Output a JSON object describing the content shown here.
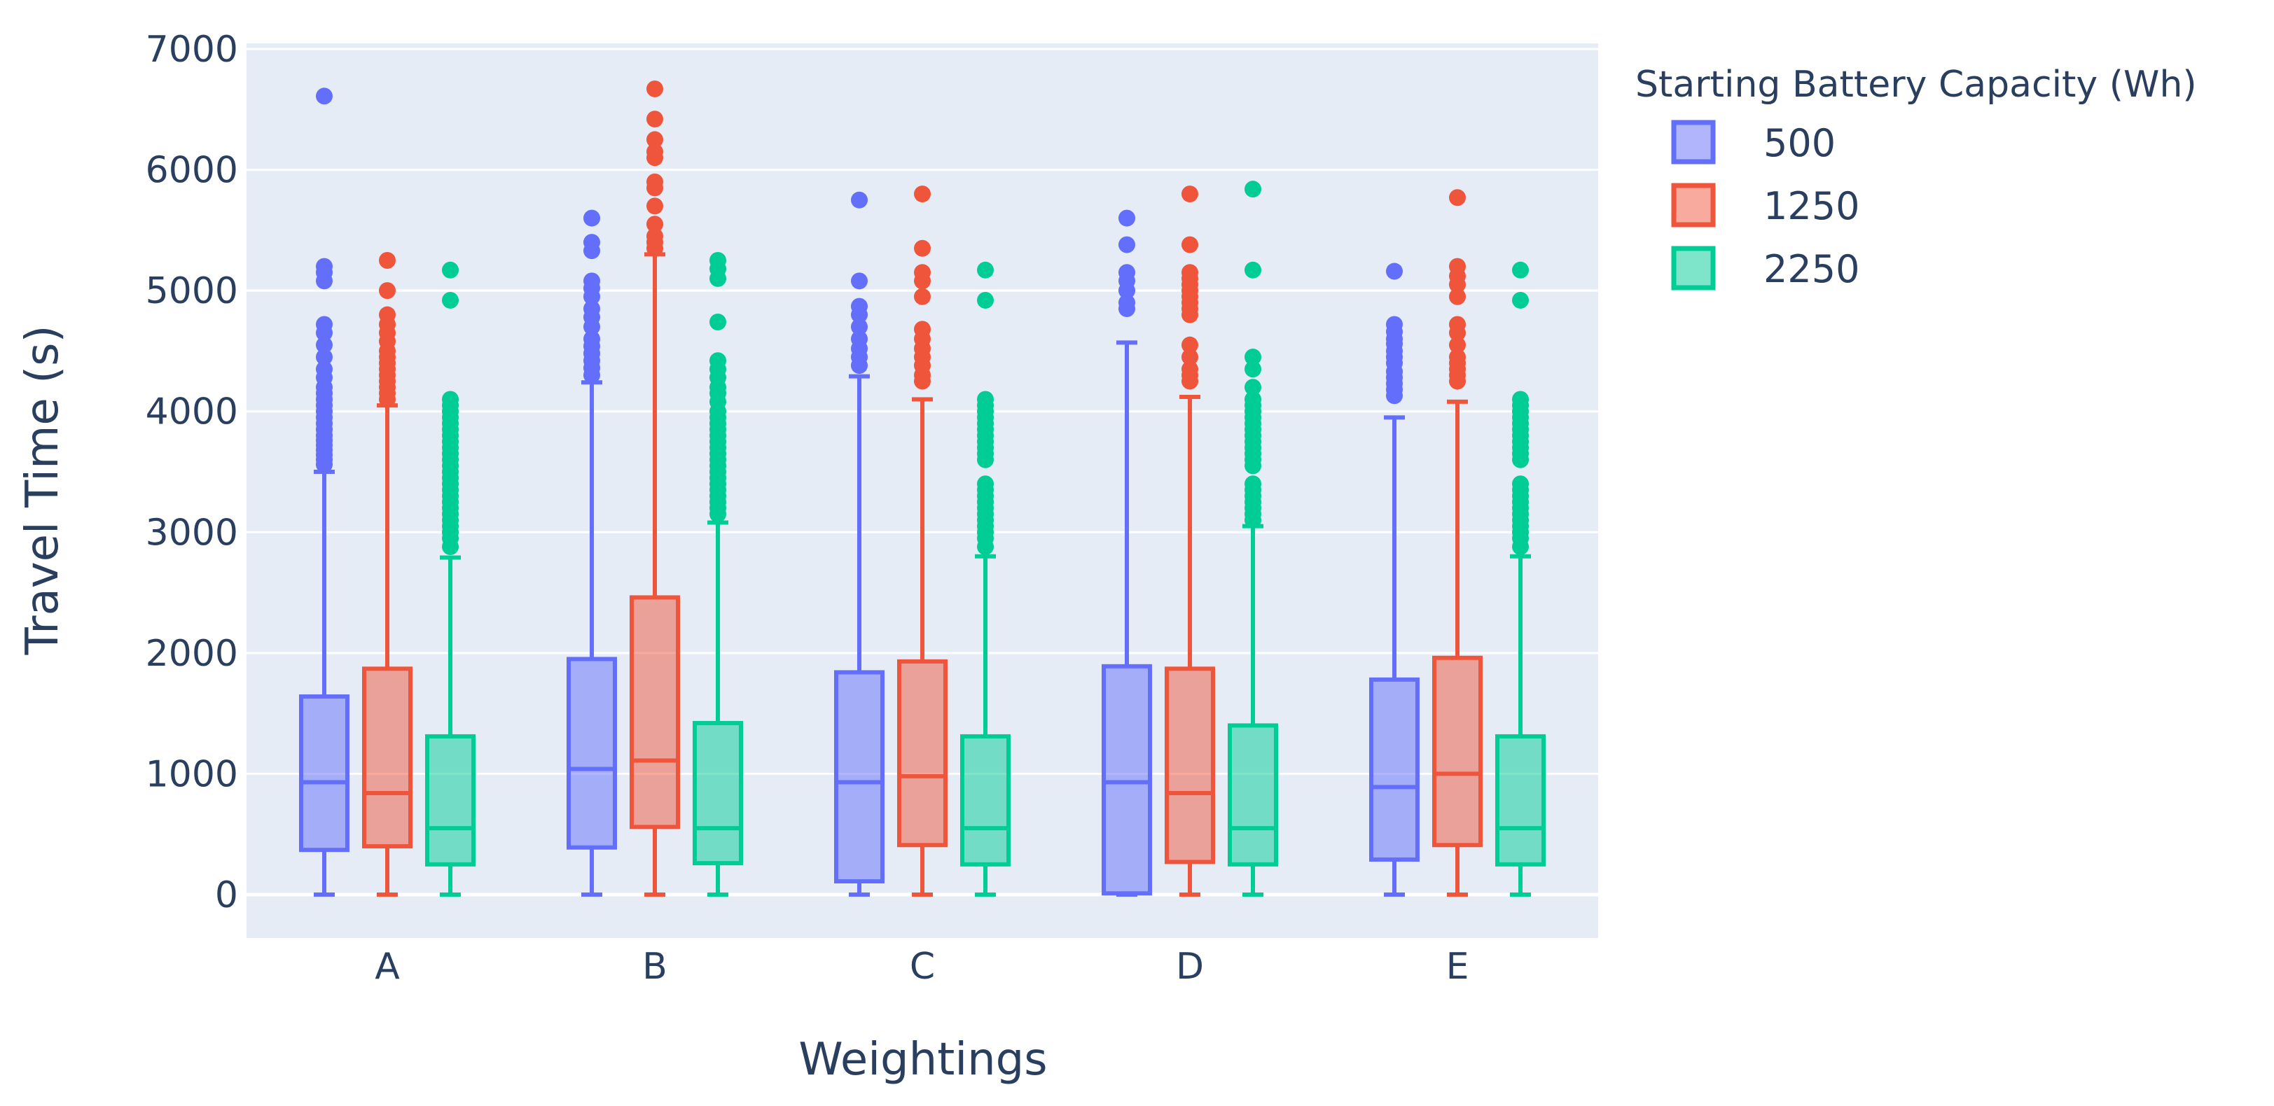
{
  "chart_data": {
    "type": "box",
    "title": "",
    "xlabel": "Weightings",
    "ylabel": "Travel Time (s)",
    "ylim": [
      -350,
      7000
    ],
    "yticks": [
      0,
      1000,
      2000,
      3000,
      4000,
      5000,
      6000,
      7000
    ],
    "categories": [
      "A",
      "B",
      "C",
      "D",
      "E"
    ],
    "legend": {
      "title": "Starting Battery Capacity (Wh)",
      "position": "right"
    },
    "background": "#e5ecf6",
    "series": [
      {
        "name": "500",
        "color": "#636efa",
        "fill": "rgba(99,110,250,0.5)",
        "boxes": [
          {
            "min": 0,
            "q1": 370,
            "median": 930,
            "q3": 1640,
            "max": 3500,
            "outliers": [
              3560,
              3600,
              3640,
              3680,
              3720,
              3760,
              3800,
              3850,
              3900,
              3950,
              4000,
              4050,
              4100,
              4150,
              4200,
              4280,
              4350,
              4450,
              4550,
              4650,
              4720,
              5080,
              5150,
              5200,
              6610
            ]
          },
          {
            "min": 0,
            "q1": 390,
            "median": 1040,
            "q3": 1950,
            "max": 4240,
            "outliers": [
              4300,
              4360,
              4420,
              4480,
              4540,
              4600,
              4700,
              4780,
              4850,
              4950,
              5020,
              5080,
              5330,
              5400,
              5600
            ]
          },
          {
            "min": 0,
            "q1": 110,
            "median": 930,
            "q3": 1840,
            "max": 4290,
            "outliers": [
              4380,
              4450,
              4520,
              4600,
              4700,
              4800,
              4870,
              5080,
              5750
            ]
          },
          {
            "min": 0,
            "q1": 10,
            "median": 930,
            "q3": 1890,
            "max": 4570,
            "outliers": [
              4850,
              4900,
              5000,
              5080,
              5150,
              5380,
              5600
            ]
          },
          {
            "min": 0,
            "q1": 290,
            "median": 890,
            "q3": 1780,
            "max": 3950,
            "outliers": [
              4130,
              4180,
              4230,
              4280,
              4330,
              4400,
              4450,
              4500,
              4560,
              4600,
              4660,
              4720,
              5160
            ]
          }
        ]
      },
      {
        "name": "1250",
        "color": "#ef553b",
        "fill": "rgba(239,85,59,0.5)",
        "boxes": [
          {
            "min": 0,
            "q1": 400,
            "median": 840,
            "q3": 1870,
            "max": 4050,
            "outliers": [
              4100,
              4150,
              4200,
              4250,
              4300,
              4350,
              4400,
              4450,
              4500,
              4580,
              4650,
              4720,
              4800,
              5000,
              5250
            ]
          },
          {
            "min": 0,
            "q1": 560,
            "median": 1110,
            "q3": 2460,
            "max": 5300,
            "outliers": [
              5350,
              5400,
              5450,
              5550,
              5700,
              5850,
              5900,
              6100,
              6150,
              6250,
              6420,
              6670
            ]
          },
          {
            "min": 0,
            "q1": 410,
            "median": 980,
            "q3": 1930,
            "max": 4100,
            "outliers": [
              4250,
              4300,
              4380,
              4450,
              4520,
              4600,
              4680,
              4950,
              5080,
              5150,
              5350,
              5800
            ]
          },
          {
            "min": 0,
            "q1": 270,
            "median": 840,
            "q3": 1870,
            "max": 4120,
            "outliers": [
              4250,
              4300,
              4350,
              4450,
              4550,
              4800,
              4850,
              4900,
              4950,
              5000,
              5050,
              5100,
              5150,
              5380,
              5800
            ]
          },
          {
            "min": 0,
            "q1": 410,
            "median": 1000,
            "q3": 1960,
            "max": 4080,
            "outliers": [
              4250,
              4300,
              4350,
              4400,
              4450,
              4550,
              4650,
              4720,
              4950,
              5050,
              5120,
              5200,
              5770
            ]
          }
        ]
      },
      {
        "name": "2250",
        "color": "#00cc96",
        "fill": "rgba(0,204,150,0.5)",
        "boxes": [
          {
            "min": 0,
            "q1": 250,
            "median": 550,
            "q3": 1310,
            "max": 2790,
            "outliers": [
              2880,
              2950,
              3000,
              3050,
              3100,
              3150,
              3200,
              3250,
              3300,
              3350,
              3400,
              3450,
              3500,
              3550,
              3600,
              3650,
              3700,
              3750,
              3800,
              3850,
              3900,
              3950,
              4000,
              4050,
              4100,
              4920,
              5170
            ]
          },
          {
            "min": 0,
            "q1": 260,
            "median": 550,
            "q3": 1420,
            "max": 3080,
            "outliers": [
              3150,
              3200,
              3250,
              3300,
              3350,
              3400,
              3450,
              3500,
              3550,
              3600,
              3650,
              3700,
              3750,
              3800,
              3850,
              3900,
              3950,
              4000,
              4080,
              4150,
              4200,
              4280,
              4350,
              4420,
              4740,
              5100,
              5180,
              5250
            ]
          },
          {
            "min": 0,
            "q1": 250,
            "median": 550,
            "q3": 1310,
            "max": 2800,
            "outliers": [
              2880,
              2950,
              3000,
              3050,
              3100,
              3150,
              3200,
              3250,
              3300,
              3350,
              3400,
              3600,
              3650,
              3700,
              3750,
              3800,
              3850,
              3900,
              3950,
              4000,
              4050,
              4100,
              4920,
              5170
            ]
          },
          {
            "min": 0,
            "q1": 250,
            "median": 550,
            "q3": 1400,
            "max": 3050,
            "outliers": [
              3100,
              3150,
              3200,
              3250,
              3300,
              3350,
              3400,
              3550,
              3600,
              3650,
              3700,
              3750,
              3800,
              3850,
              3900,
              3950,
              4000,
              4050,
              4100,
              4200,
              4350,
              4450,
              5170,
              5840
            ]
          },
          {
            "min": 0,
            "q1": 250,
            "median": 550,
            "q3": 1310,
            "max": 2800,
            "outliers": [
              2880,
              2950,
              3000,
              3050,
              3100,
              3150,
              3200,
              3250,
              3300,
              3350,
              3400,
              3600,
              3650,
              3700,
              3750,
              3800,
              3850,
              3900,
              3950,
              4000,
              4050,
              4100,
              4920,
              5170
            ]
          }
        ]
      }
    ]
  }
}
